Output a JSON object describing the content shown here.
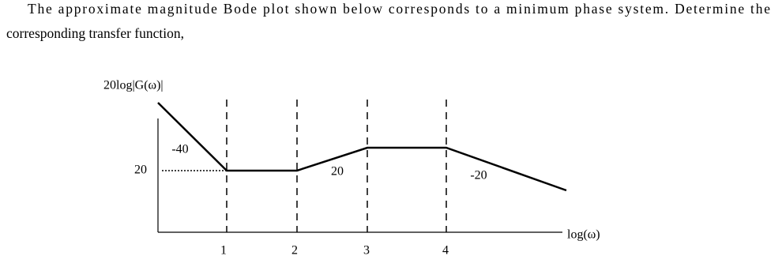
{
  "question": {
    "text_line_1": "The approximate magnitude Bode plot shown below corresponds to a minimum phase system. Determine the",
    "text_line_2": "corresponding transfer function,"
  },
  "figure": {
    "y_axis_label": "20log|G(ω)|",
    "x_axis_label": "log(ω)",
    "y_tick": "20",
    "x_ticks": [
      "1",
      "2",
      "3",
      "4"
    ],
    "slope_labels": [
      "-40",
      "20",
      "-20"
    ]
  }
}
